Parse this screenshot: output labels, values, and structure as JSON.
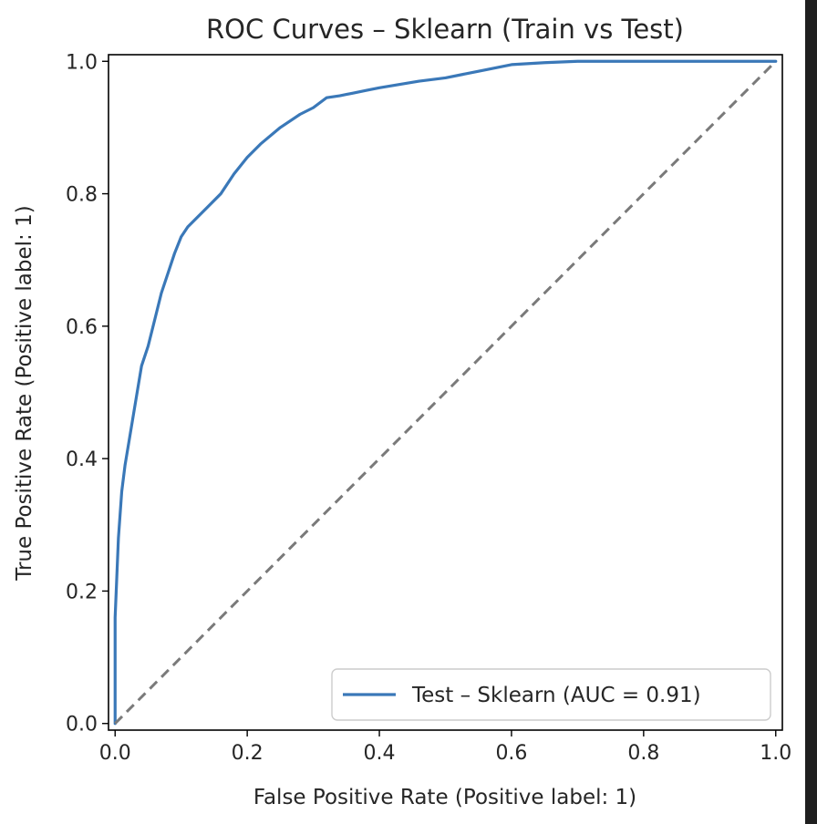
{
  "chart_data": {
    "type": "line",
    "title": "ROC Curves – Sklearn (Train vs Test)",
    "xlabel": "False Positive Rate (Positive label: 1)",
    "ylabel": "True Positive Rate (Positive label: 1)",
    "xlim": [
      -0.01,
      1.01
    ],
    "ylim": [
      -0.01,
      1.01
    ],
    "x_ticks": [
      "0.0",
      "0.2",
      "0.4",
      "0.6",
      "0.8",
      "1.0"
    ],
    "y_ticks": [
      "0.0",
      "0.2",
      "0.4",
      "0.6",
      "0.8",
      "1.0"
    ],
    "grid": false,
    "legend_position": "lower-right",
    "series": [
      {
        "name": "Test – Sklearn (AUC = 0.91)",
        "color": "#3a78b8",
        "style": "solid",
        "x": [
          0.0,
          0.0,
          0.005,
          0.01,
          0.015,
          0.02,
          0.03,
          0.04,
          0.05,
          0.06,
          0.07,
          0.08,
          0.09,
          0.1,
          0.11,
          0.12,
          0.14,
          0.16,
          0.18,
          0.2,
          0.22,
          0.25,
          0.28,
          0.3,
          0.32,
          0.34,
          0.36,
          0.38,
          0.4,
          0.43,
          0.46,
          0.5,
          0.55,
          0.6,
          0.65,
          0.7,
          0.8,
          0.9,
          1.0
        ],
        "y": [
          0.0,
          0.16,
          0.28,
          0.35,
          0.39,
          0.42,
          0.48,
          0.54,
          0.57,
          0.61,
          0.65,
          0.68,
          0.71,
          0.735,
          0.75,
          0.76,
          0.78,
          0.8,
          0.83,
          0.855,
          0.875,
          0.9,
          0.92,
          0.93,
          0.945,
          0.948,
          0.952,
          0.956,
          0.96,
          0.965,
          0.97,
          0.975,
          0.985,
          0.995,
          0.998,
          1.0,
          1.0,
          1.0,
          1.0
        ]
      },
      {
        "name": "",
        "color": "#7a7a7a",
        "style": "dashed",
        "x": [
          0.0,
          1.0
        ],
        "y": [
          0.0,
          1.0
        ]
      }
    ],
    "legend": [
      {
        "label": "Test – Sklearn (AUC = 0.91)",
        "color": "#3a78b8"
      }
    ]
  }
}
